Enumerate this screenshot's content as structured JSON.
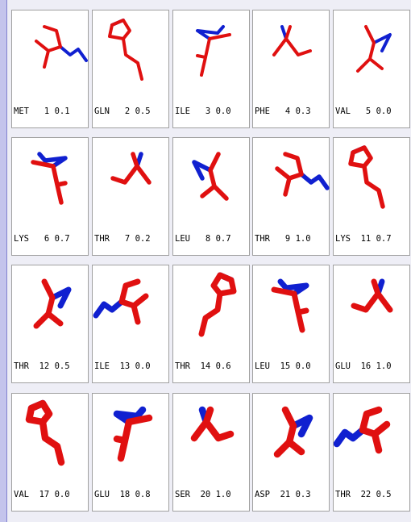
{
  "cells": [
    {
      "label": "MET   1 0.1"
    },
    {
      "label": "GLN   2 0.5"
    },
    {
      "label": "ILE   3 0.0"
    },
    {
      "label": "PHE   4 0.3"
    },
    {
      "label": "VAL   5 0.0"
    },
    {
      "label": "LYS   6 0.7"
    },
    {
      "label": "THR   7 0.2"
    },
    {
      "label": "LEU   8 0.7"
    },
    {
      "label": "THR   9 1.0"
    },
    {
      "label": "LYS  11 0.7"
    },
    {
      "label": "THR  12 0.5"
    },
    {
      "label": "ILE  13 0.0"
    },
    {
      "label": "THR  14 0.6"
    },
    {
      "label": "LEU  15 0.0"
    },
    {
      "label": "GLU  16 1.0"
    },
    {
      "label": "VAL  17 0.0"
    },
    {
      "label": "GLU  18 0.8"
    },
    {
      "label": "SER  20 1.0"
    },
    {
      "label": "ASP  21 0.3"
    },
    {
      "label": "THR  22 0.5"
    }
  ]
}
